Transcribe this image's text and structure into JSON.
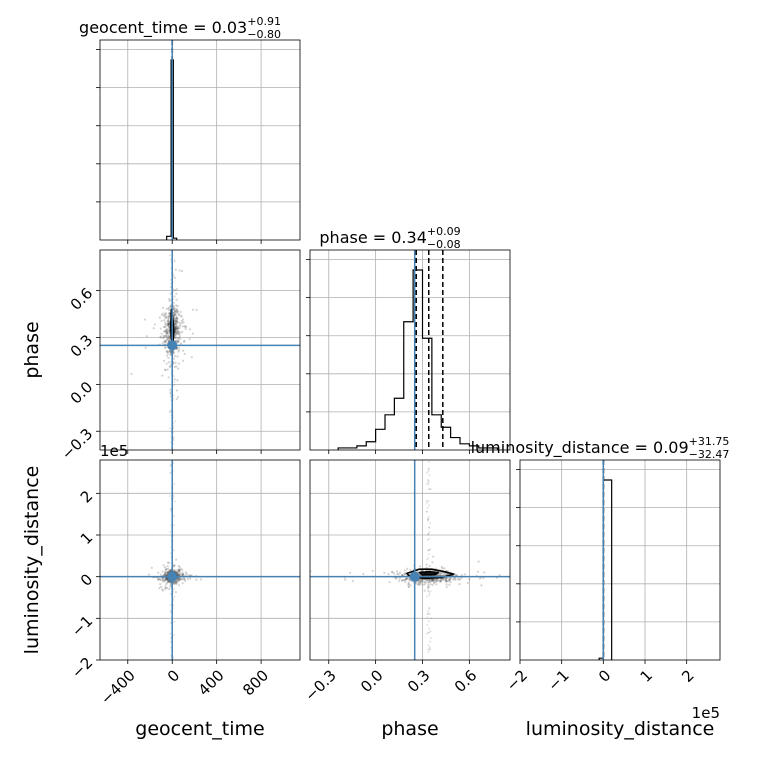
{
  "chart_data": {
    "type": "corner",
    "colors": {
      "truth": "#4682b4",
      "hist": "#000000",
      "grid": "#b0b0b0",
      "sample": "#555555"
    },
    "parameters": [
      {
        "key": "geocent_time",
        "label": "geocent_time",
        "range": [
          -650,
          1150
        ],
        "ticks": [
          -400,
          0,
          400,
          800
        ],
        "tick_labels": [
          "−400",
          "0",
          "400",
          "800"
        ],
        "offset_label": "",
        "truth": 0,
        "title": {
          "base": "geocent_time = 0.03",
          "sup": "+0.91",
          "sub": "−0.80"
        },
        "quantiles": [
          -0.77,
          0.03,
          0.94
        ],
        "hist": {
          "bins": [
            -50,
            -10,
            10,
            40
          ],
          "counts": [
            0.02,
            0.98,
            0.01
          ]
        }
      },
      {
        "key": "phase",
        "label": "phase",
        "range": [
          -0.42,
          0.86
        ],
        "ticks": [
          -0.3,
          0.0,
          0.3,
          0.6
        ],
        "tick_labels": [
          "−0.3",
          "0.0",
          "0.3",
          "0.6"
        ],
        "offset_label": "",
        "truth": 0.25,
        "title": {
          "base": "phase = 0.34",
          "sup": "+0.09",
          "sub": "−0.08"
        },
        "quantiles": [
          0.26,
          0.34,
          0.43
        ],
        "hist": {
          "bins": [
            -0.24,
            -0.18,
            -0.12,
            -0.06,
            0.0,
            0.06,
            0.12,
            0.18,
            0.24,
            0.3,
            0.36,
            0.42,
            0.48,
            0.54,
            0.6,
            0.66,
            0.72,
            0.78
          ],
          "counts": [
            0.01,
            0.01,
            0.02,
            0.04,
            0.1,
            0.17,
            0.25,
            0.62,
            0.87,
            0.54,
            0.17,
            0.11,
            0.06,
            0.03,
            0.02,
            0.01,
            0.01
          ]
        }
      },
      {
        "key": "luminosity_distance",
        "label": "luminosity_distance",
        "range": [
          -2,
          2.8
        ],
        "ticks": [
          -2,
          -1,
          0,
          1,
          2
        ],
        "tick_labels": [
          "−2",
          "−1",
          "0",
          "1",
          "2"
        ],
        "offset_label": "1e5",
        "truth": 0,
        "title": {
          "base": "luminosity_distance = 0.09",
          "sup": "+31.75",
          "sub": "−32.47"
        },
        "quantiles": [
          -0.00032,
          9e-07,
          0.00032
        ],
        "hist": {
          "bins": [
            -0.1,
            0.0,
            0.2
          ],
          "counts": [
            0.01,
            0.98
          ]
        }
      }
    ],
    "contours": {
      "phase_vs_geocent_time": [
        [
          [
            -8,
            0.48
          ],
          [
            0,
            0.44
          ],
          [
            10,
            0.39
          ],
          [
            14,
            0.33
          ],
          [
            8,
            0.28
          ],
          [
            -2,
            0.27
          ],
          [
            -10,
            0.31
          ],
          [
            -12,
            0.38
          ],
          [
            -8,
            0.48
          ]
        ],
        [
          [
            -3,
            0.38
          ],
          [
            3,
            0.37
          ],
          [
            6,
            0.33
          ],
          [
            2,
            0.3
          ],
          [
            -3,
            0.31
          ],
          [
            -5,
            0.34
          ],
          [
            -3,
            0.38
          ]
        ]
      ],
      "luminosity_distance_vs_phase": [
        [
          [
            0.2,
            0.08
          ],
          [
            0.28,
            0.18
          ],
          [
            0.36,
            0.18
          ],
          [
            0.44,
            0.12
          ],
          [
            0.5,
            0.06
          ],
          [
            0.42,
            -0.02
          ],
          [
            0.32,
            -0.04
          ],
          [
            0.22,
            0.0
          ],
          [
            0.2,
            0.08
          ]
        ],
        [
          [
            0.28,
            0.1
          ],
          [
            0.34,
            0.12
          ],
          [
            0.4,
            0.1
          ],
          [
            0.38,
            0.05
          ],
          [
            0.3,
            0.04
          ],
          [
            0.28,
            0.1
          ]
        ]
      ]
    }
  }
}
